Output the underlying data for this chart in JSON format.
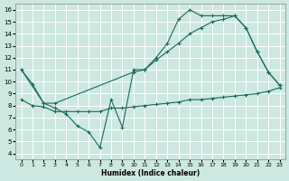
{
  "xlabel": "Humidex (Indice chaleur)",
  "bg_color": "#cce8e0",
  "line_color": "#1a6b5a",
  "grid_color": "#ffffff",
  "xlim": [
    -0.5,
    23.5
  ],
  "ylim": [
    3.5,
    16.5
  ],
  "xticks": [
    0,
    1,
    2,
    3,
    4,
    5,
    6,
    7,
    8,
    9,
    10,
    11,
    12,
    13,
    14,
    15,
    16,
    17,
    18,
    19,
    20,
    21,
    22,
    23
  ],
  "yticks": [
    4,
    5,
    6,
    7,
    8,
    9,
    10,
    11,
    12,
    13,
    14,
    15,
    16
  ],
  "line1_x": [
    0,
    1,
    2,
    3,
    4,
    5,
    6,
    7,
    8,
    9,
    10,
    11,
    12,
    13,
    14,
    15,
    16,
    17,
    18,
    19,
    20,
    21,
    22,
    23
  ],
  "line1_y": [
    11,
    9.8,
    8.2,
    7.8,
    7.3,
    6.3,
    5.8,
    4.5,
    8.5,
    6.2,
    11.0,
    11.0,
    12.0,
    13.2,
    15.2,
    16.0,
    15.5,
    15.5,
    15.5,
    15.5,
    14.5,
    12.5,
    10.8,
    9.7
  ],
  "line2_x": [
    0,
    2,
    3,
    10,
    11,
    12,
    13,
    14,
    15,
    16,
    17,
    18,
    19,
    20,
    21,
    22,
    23
  ],
  "line2_y": [
    11,
    8.2,
    8.2,
    10.8,
    11.0,
    11.8,
    12.5,
    13.2,
    14.0,
    14.5,
    15.0,
    15.2,
    15.5,
    14.5,
    12.5,
    10.8,
    9.7
  ],
  "line3_x": [
    0,
    1,
    2,
    3,
    4,
    5,
    6,
    7,
    8,
    9,
    10,
    11,
    12,
    13,
    14,
    15,
    16,
    17,
    18,
    19,
    20,
    21,
    22,
    23
  ],
  "line3_y": [
    8.5,
    8.0,
    7.9,
    7.5,
    7.5,
    7.5,
    7.5,
    7.5,
    7.8,
    7.8,
    7.9,
    8.0,
    8.1,
    8.2,
    8.3,
    8.5,
    8.5,
    8.6,
    8.7,
    8.8,
    8.9,
    9.0,
    9.2,
    9.5
  ],
  "figsize": [
    3.2,
    2.0
  ],
  "dpi": 100,
  "tick_fontsize_x": 4.5,
  "tick_fontsize_y": 5.0,
  "xlabel_fontsize": 5.5,
  "linewidth": 0.8,
  "markersize": 3.0
}
